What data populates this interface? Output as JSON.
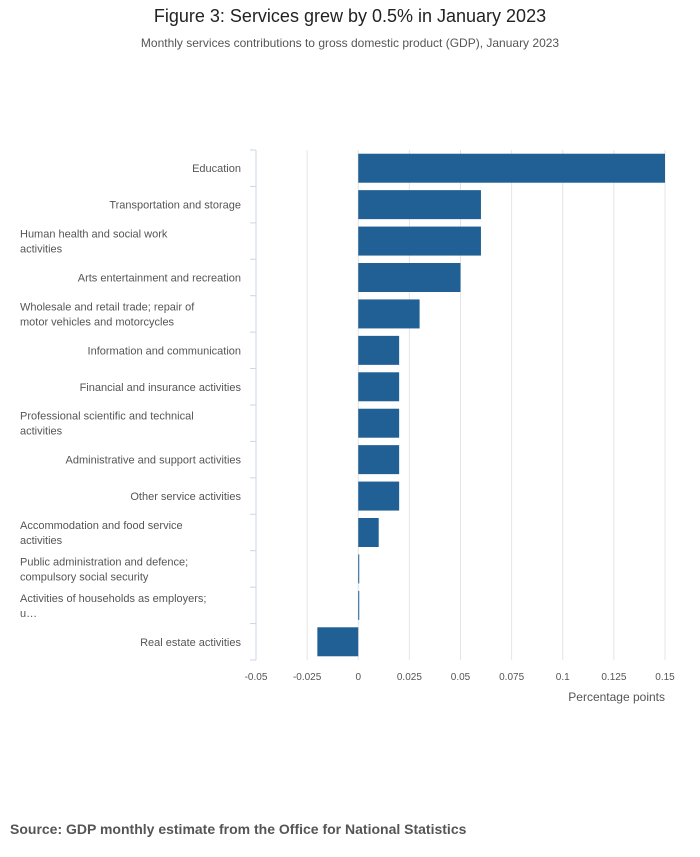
{
  "header": {
    "title": "Figure 3: Services grew by 0.5% in January 2023",
    "subtitle": "Monthly services contributions to gross domestic product (GDP), January 2023"
  },
  "footer": {
    "source": "Source: GDP monthly estimate from the Office for National Statistics"
  },
  "colors": {
    "bar": "#206095",
    "grid": "#e4e4e4",
    "axis": "#c8d7e6",
    "label": "#555555"
  },
  "chart_data": {
    "type": "bar",
    "orientation": "horizontal",
    "categories": [
      "Education",
      "Transportation and storage",
      "Human health and social work activities",
      "Arts entertainment and recreation",
      "Wholesale and retail trade; repair of motor vehicles and motorcycles",
      "Information and communication",
      "Financial and insurance activities",
      "Professional scientific and technical activities",
      "Administrative and support activities",
      "Other service activities",
      "Accommodation and food service activities",
      "Public administration and defence; compulsory social security",
      "Activities of households as employers; u…",
      "Real estate activities"
    ],
    "values": [
      0.15,
      0.06,
      0.06,
      0.05,
      0.03,
      0.02,
      0.02,
      0.02,
      0.02,
      0.02,
      0.01,
      0.0,
      0.0,
      -0.02
    ],
    "xlim": [
      -0.05,
      0.15
    ],
    "xticks": [
      "-0.05",
      "-0.025",
      "0",
      "0.025",
      "0.05",
      "0.075",
      "0.1",
      "0.125",
      "0.15"
    ],
    "xlabel": "Percentage points",
    "ylabel": "",
    "grid": true
  }
}
